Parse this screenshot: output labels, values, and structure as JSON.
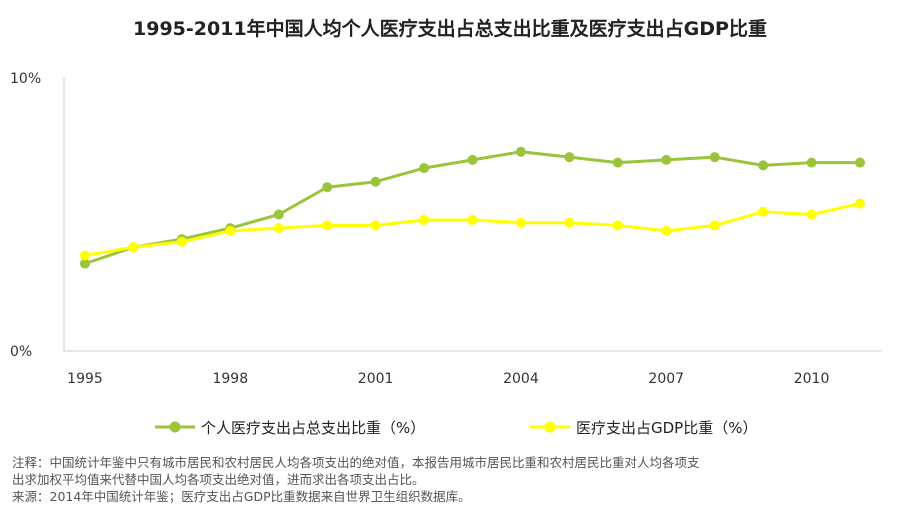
{
  "title": "1995-2011年中国人均个人医疗支出占总支出比重及医疗支出占GDP比重",
  "chart_data": {
    "type": "line",
    "x": [
      1995,
      1996,
      1997,
      1998,
      1999,
      2000,
      2001,
      2002,
      2003,
      2004,
      2005,
      2006,
      2007,
      2008,
      2009,
      2010,
      2011
    ],
    "x_tick_labels": [
      "1995",
      "1998",
      "2001",
      "2004",
      "2007",
      "2010"
    ],
    "x_tick_values": [
      1995,
      1998,
      2001,
      2004,
      2007,
      2010
    ],
    "y_tick_labels": [
      "0%",
      "10%"
    ],
    "y_tick_values": [
      0,
      10
    ],
    "ylim": [
      0,
      10
    ],
    "xlim": [
      1995,
      2011
    ],
    "grid": false,
    "legend_position": "bottom",
    "series": [
      {
        "name": "个人医疗支出占总支出比重（%）",
        "color": "#9bc43a",
        "values": [
          3.2,
          3.8,
          4.1,
          4.5,
          5.0,
          6.0,
          6.2,
          6.7,
          7.0,
          7.3,
          7.1,
          6.9,
          7.0,
          7.1,
          6.8,
          6.9,
          6.9
        ]
      },
      {
        "name": "医疗支出占GDP比重（%）",
        "color": "#ffff00",
        "values": [
          3.5,
          3.8,
          4.0,
          4.4,
          4.5,
          4.6,
          4.6,
          4.8,
          4.8,
          4.7,
          4.7,
          4.6,
          4.4,
          4.6,
          5.1,
          5.0,
          5.4
        ]
      }
    ]
  },
  "notes": {
    "line1": "注释：中国统计年鉴中只有城市居民和农村居民人均各项支出的绝对值，本报告用城市居民比重和农村居民比重对人均各项支",
    "line2": "出求加权平均值来代替中国人均各项支出绝对值，进而求出各项支出占比。",
    "line3": "来源：2014年中国统计年鉴；医疗支出占GDP比重数据来自世界卫生组织数据库。"
  }
}
